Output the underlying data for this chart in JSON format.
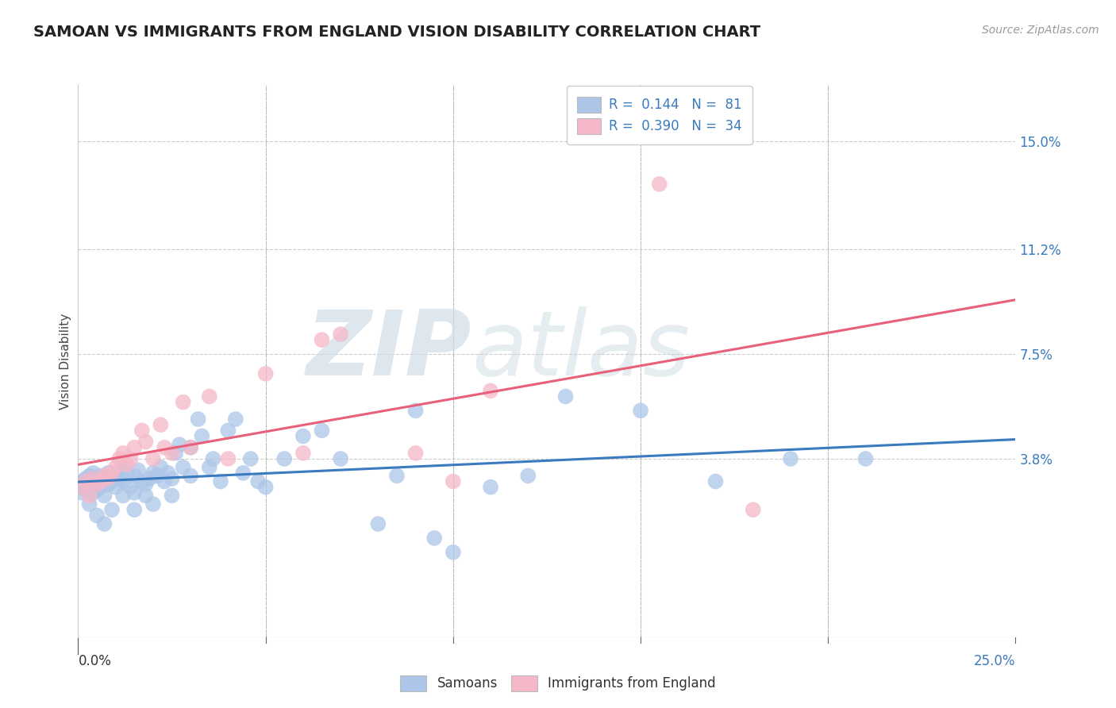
{
  "title": "SAMOAN VS IMMIGRANTS FROM ENGLAND VISION DISABILITY CORRELATION CHART",
  "source": "Source: ZipAtlas.com",
  "ylabel": "Vision Disability",
  "ytick_labels": [
    "15.0%",
    "11.2%",
    "7.5%",
    "3.8%"
  ],
  "ytick_values": [
    0.15,
    0.112,
    0.075,
    0.038
  ],
  "xlim": [
    0.0,
    0.25
  ],
  "ylim": [
    -0.025,
    0.17
  ],
  "legend_labels_bottom": [
    "Samoans",
    "Immigrants from England"
  ],
  "samoans_color": "#adc6e8",
  "immigrants_color": "#f5b8c8",
  "samoans_line_color": "#3a7abf",
  "immigrants_line_color": "#e8607a",
  "watermark_zip": "ZIP",
  "watermark_atlas": "atlas",
  "samoans_x": [
    0.001,
    0.001,
    0.001,
    0.002,
    0.002,
    0.002,
    0.003,
    0.003,
    0.003,
    0.004,
    0.004,
    0.005,
    0.005,
    0.005,
    0.006,
    0.006,
    0.007,
    0.007,
    0.008,
    0.008,
    0.009,
    0.01,
    0.01,
    0.011,
    0.012,
    0.012,
    0.013,
    0.014,
    0.015,
    0.015,
    0.016,
    0.017,
    0.018,
    0.019,
    0.02,
    0.021,
    0.022,
    0.023,
    0.024,
    0.025,
    0.026,
    0.027,
    0.028,
    0.03,
    0.032,
    0.033,
    0.035,
    0.036,
    0.038,
    0.04,
    0.042,
    0.044,
    0.046,
    0.048,
    0.05,
    0.055,
    0.06,
    0.065,
    0.07,
    0.08,
    0.085,
    0.09,
    0.095,
    0.1,
    0.11,
    0.12,
    0.13,
    0.15,
    0.17,
    0.19,
    0.003,
    0.005,
    0.007,
    0.009,
    0.012,
    0.015,
    0.018,
    0.02,
    0.025,
    0.03,
    0.21
  ],
  "samoans_y": [
    0.03,
    0.028,
    0.026,
    0.031,
    0.029,
    0.027,
    0.032,
    0.03,
    0.028,
    0.033,
    0.026,
    0.031,
    0.029,
    0.027,
    0.032,
    0.028,
    0.031,
    0.025,
    0.033,
    0.029,
    0.03,
    0.032,
    0.028,
    0.031,
    0.035,
    0.03,
    0.033,
    0.028,
    0.032,
    0.026,
    0.034,
    0.03,
    0.029,
    0.031,
    0.033,
    0.032,
    0.035,
    0.03,
    0.033,
    0.031,
    0.04,
    0.043,
    0.035,
    0.042,
    0.052,
    0.046,
    0.035,
    0.038,
    0.03,
    0.048,
    0.052,
    0.033,
    0.038,
    0.03,
    0.028,
    0.038,
    0.046,
    0.048,
    0.038,
    0.015,
    0.032,
    0.055,
    0.01,
    0.005,
    0.028,
    0.032,
    0.06,
    0.055,
    0.03,
    0.038,
    0.022,
    0.018,
    0.015,
    0.02,
    0.025,
    0.02,
    0.025,
    0.022,
    0.025,
    0.032,
    0.038
  ],
  "immigrants_x": [
    0.001,
    0.002,
    0.003,
    0.004,
    0.005,
    0.006,
    0.007,
    0.008,
    0.009,
    0.01,
    0.011,
    0.012,
    0.013,
    0.014,
    0.015,
    0.017,
    0.018,
    0.02,
    0.022,
    0.023,
    0.025,
    0.028,
    0.03,
    0.035,
    0.04,
    0.05,
    0.06,
    0.065,
    0.07,
    0.09,
    0.1,
    0.11,
    0.155,
    0.18
  ],
  "immigrants_y": [
    0.028,
    0.03,
    0.025,
    0.031,
    0.029,
    0.03,
    0.032,
    0.031,
    0.033,
    0.035,
    0.038,
    0.04,
    0.036,
    0.038,
    0.042,
    0.048,
    0.044,
    0.038,
    0.05,
    0.042,
    0.04,
    0.058,
    0.042,
    0.06,
    0.038,
    0.068,
    0.04,
    0.08,
    0.082,
    0.04,
    0.03,
    0.062,
    0.135,
    0.02
  ]
}
